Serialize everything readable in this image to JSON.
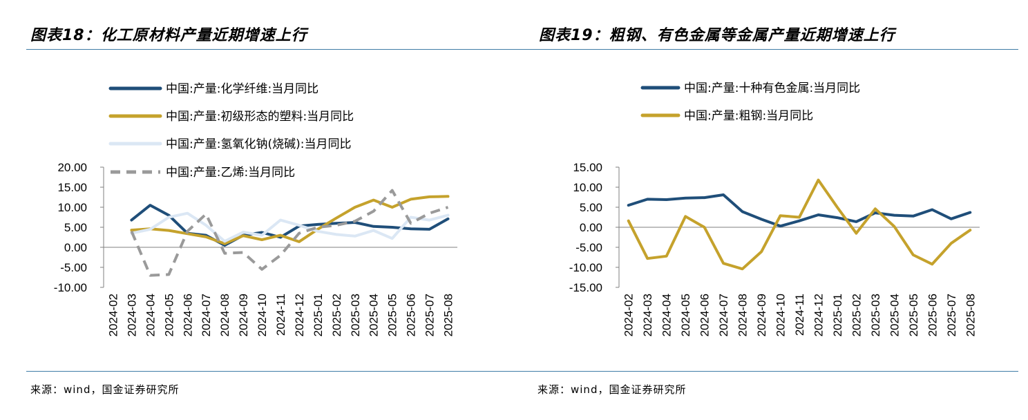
{
  "left": {
    "title": "图表18：化工原材料产量近期增速上行",
    "source": "来源：wind，国金证券研究所"
  },
  "right": {
    "title": "图表19：粗钢、有色金属等金属产量近期增速上行",
    "source": "来源：wind，国金证券研究所"
  },
  "chart_data": [
    {
      "type": "line",
      "title": "",
      "xlabel": "",
      "ylabel": "",
      "ylim": [
        -10,
        20
      ],
      "yticks": [
        20,
        15,
        10,
        5,
        0,
        -5,
        -10
      ],
      "ytick_labels": [
        "20.00",
        "15.00",
        "10.00",
        "5.00",
        "0.00",
        "-5.00",
        "-10.00"
      ],
      "grid": false,
      "legend_position": "top-left",
      "categories": [
        "2024-02",
        "2024-03",
        "2024-04",
        "2024-05",
        "2024-06",
        "2024-07",
        "2024-08",
        "2024-09",
        "2024-10",
        "2024-11",
        "2024-12",
        "2025-01",
        "2025-02",
        "2025-03",
        "2025-04",
        "2025-05",
        "2025-06",
        "2025-07",
        "2025-08"
      ],
      "series": [
        {
          "name": "中国:产量:化学纤维:当月同比",
          "color": "#1f4e79",
          "dash": "solid",
          "values": [
            null,
            6.8,
            10.5,
            8.0,
            3.5,
            3.0,
            0.5,
            3.0,
            3.7,
            2.5,
            5.3,
            5.7,
            6.0,
            6.2,
            5.2,
            5.0,
            4.6,
            4.5,
            7.1
          ]
        },
        {
          "name": "中国:产量:初级形态的塑料:当月同比",
          "color": "#c5a22c",
          "dash": "solid",
          "values": [
            null,
            4.3,
            4.6,
            4.2,
            3.4,
            2.6,
            0.9,
            2.9,
            1.9,
            3.0,
            1.4,
            4.5,
            7.3,
            10.0,
            11.8,
            10.0,
            12.0,
            12.6,
            12.7
          ]
        },
        {
          "name": "中国:产量:氢氧化钠(烧碱):当月同比",
          "color": "#dbe7f4",
          "dash": "solid",
          "values": [
            null,
            3.5,
            4.5,
            7.5,
            8.5,
            5.5,
            1.5,
            3.8,
            3.0,
            6.8,
            5.5,
            4.0,
            3.2,
            2.8,
            4.2,
            2.2,
            7.5,
            6.8,
            8.0
          ]
        },
        {
          "name": "中国:产量:乙烯:当月同比",
          "color": "#9a9a9a",
          "dash": "dashed",
          "values": [
            null,
            4.0,
            -7.0,
            -6.8,
            4.0,
            8.3,
            -1.5,
            -1.3,
            -5.5,
            -2.0,
            3.5,
            5.0,
            5.5,
            6.5,
            9.0,
            14.2,
            6.0,
            8.5,
            10.0
          ]
        }
      ]
    },
    {
      "type": "line",
      "title": "",
      "xlabel": "",
      "ylabel": "",
      "ylim": [
        -15,
        15
      ],
      "yticks": [
        15,
        10,
        5,
        0,
        -5,
        -10,
        -15
      ],
      "ytick_labels": [
        "15.00",
        "10.00",
        "5.00",
        "0.00",
        "-5.00",
        "-10.00",
        "-15.00"
      ],
      "grid": false,
      "legend_position": "top-left",
      "categories": [
        "2024-02",
        "2024-03",
        "2024-04",
        "2024-05",
        "2024-06",
        "2024-07",
        "2024-08",
        "2024-09",
        "2024-10",
        "2024-11",
        "2024-12",
        "2025-01",
        "2025-02",
        "2025-03",
        "2025-04",
        "2025-05",
        "2025-06",
        "2025-07",
        "2025-08"
      ],
      "series": [
        {
          "name": "中国:产量:十种有色金属:当月同比",
          "color": "#1f4e79",
          "dash": "solid",
          "values": [
            5.5,
            7.0,
            6.9,
            7.3,
            7.4,
            8.1,
            3.9,
            2.0,
            0.3,
            1.6,
            3.1,
            2.4,
            1.4,
            3.6,
            3.0,
            2.8,
            4.4,
            2.1,
            3.7
          ]
        },
        {
          "name": "中国:产量:粗钢:当月同比",
          "color": "#c5a22c",
          "dash": "solid",
          "values": [
            1.6,
            -7.8,
            -7.2,
            2.7,
            0.0,
            -9.0,
            -10.4,
            -6.1,
            2.9,
            2.5,
            11.8,
            5.0,
            -1.5,
            4.6,
            0.2,
            -6.9,
            -9.2,
            -4.0,
            -0.7
          ]
        }
      ]
    }
  ]
}
